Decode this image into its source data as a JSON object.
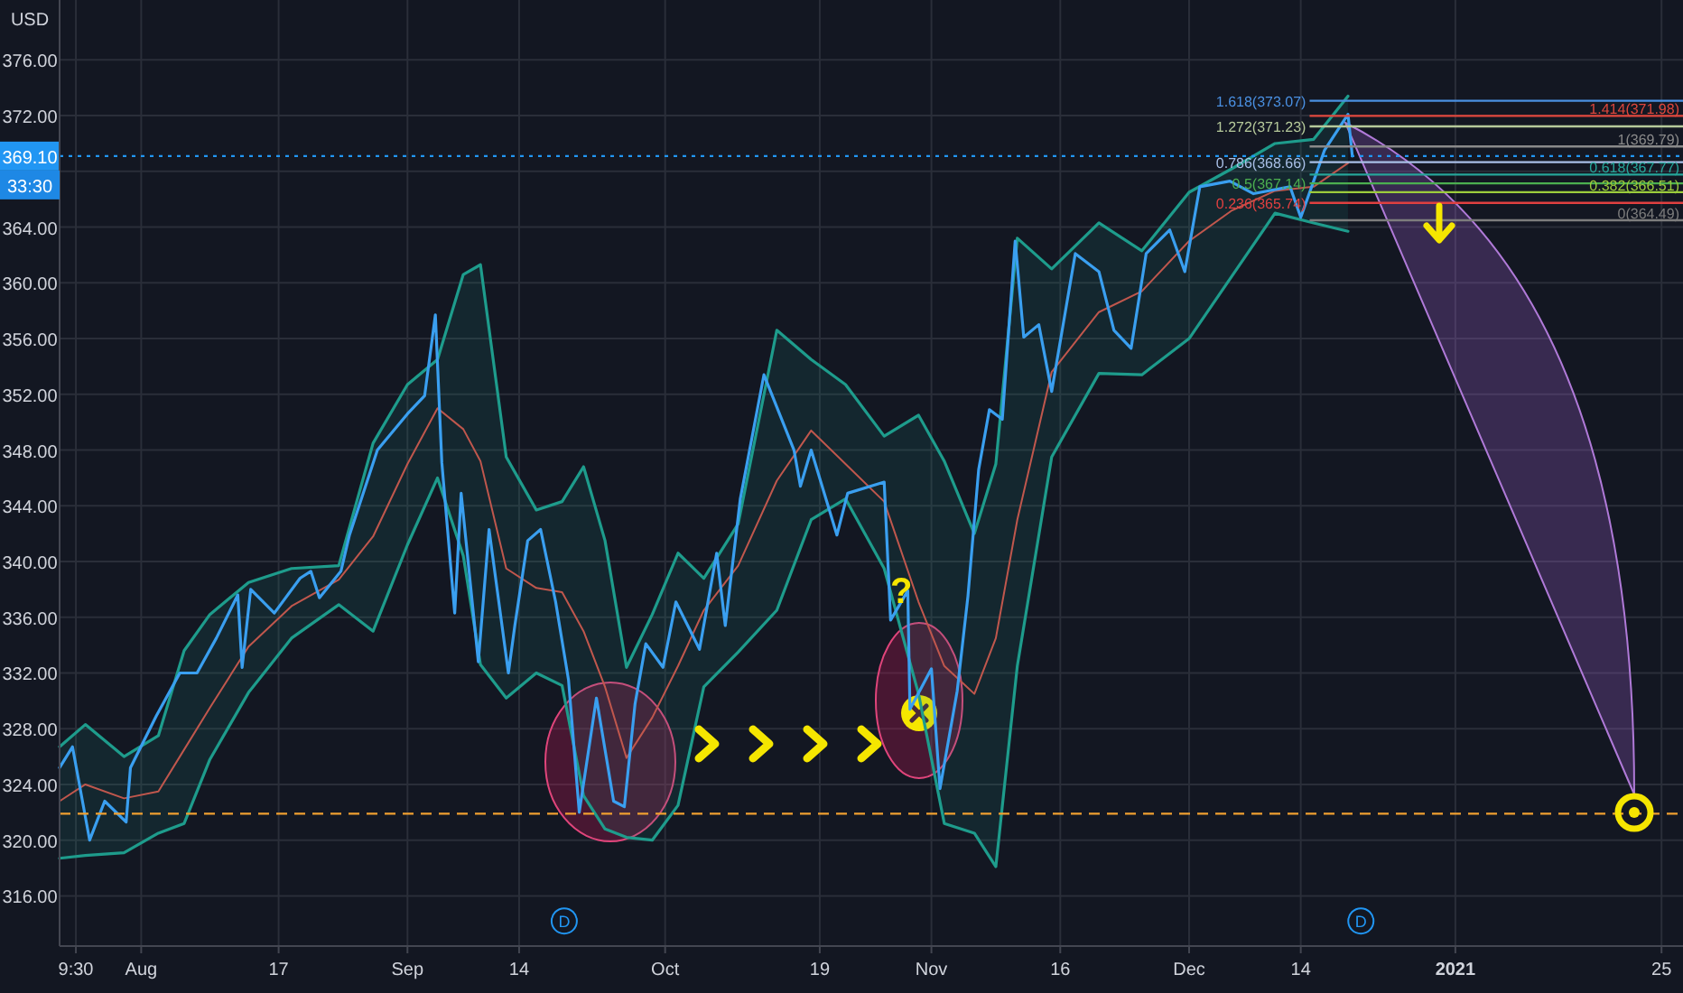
{
  "chart_data": {
    "type": "line",
    "xlim": [
      "2020-07-22T12:00",
      "2021-01-27T12:00"
    ],
    "ylim": [
      312.4,
      380.3
    ],
    "xticks": [
      {
        "value": "2020-07-24T09:30",
        "label": "9:30"
      },
      {
        "value": "2020-08-01",
        "label": "Aug"
      },
      {
        "value": "2020-08-17",
        "label": "17"
      },
      {
        "value": "2020-09-01",
        "label": "Sep"
      },
      {
        "value": "2020-09-14",
        "label": "14"
      },
      {
        "value": "2020-10-01",
        "label": "Oct"
      },
      {
        "value": "2020-10-19",
        "label": "19"
      },
      {
        "value": "2020-11-01",
        "label": "Nov"
      },
      {
        "value": "2020-11-16",
        "label": "16"
      },
      {
        "value": "2020-12-01",
        "label": "Dec"
      },
      {
        "value": "2020-12-14",
        "label": "14"
      },
      {
        "value": "2021-01-01",
        "label": "2021"
      },
      {
        "value": "2021-01-25",
        "label": "25"
      }
    ],
    "yticks": [
      {
        "value": 316,
        "label": "316.00"
      },
      {
        "value": 320,
        "label": "320.00"
      },
      {
        "value": 324,
        "label": "324.00"
      },
      {
        "value": 328,
        "label": "328.00"
      },
      {
        "value": 332,
        "label": "332.00"
      },
      {
        "value": 336,
        "label": "336.00"
      },
      {
        "value": 340,
        "label": "340.00"
      },
      {
        "value": 344,
        "label": "344.00"
      },
      {
        "value": 348,
        "label": "348.00"
      },
      {
        "value": 352,
        "label": "352.00"
      },
      {
        "value": 356,
        "label": "356.00"
      },
      {
        "value": 360,
        "label": "360.00"
      },
      {
        "value": 364,
        "label": "364.00"
      },
      {
        "value": 368,
        "label": null
      },
      {
        "value": 372,
        "label": "372.00"
      },
      {
        "value": 376,
        "label": "376.00"
      }
    ],
    "grid": true,
    "series": [
      {
        "color": "#c0574d",
        "x": [
          "2020-07-22T12:00",
          "2020-07-25T12:00",
          "2020-07-30",
          "2020-08-03",
          "2020-08-06",
          "2020-08-09",
          "2020-08-13T12:00",
          "2020-08-18T12:00",
          "2020-08-24",
          "2020-08-28",
          "2020-09-01",
          "2020-09-04T12:00",
          "2020-09-07T12:00",
          "2020-09-09T12:00",
          "2020-09-12T12:00",
          "2020-09-16",
          "2020-09-19",
          "2020-09-21T12:00",
          "2020-09-24",
          "2020-09-26T12:00",
          "2020-09-29T12:00",
          "2020-10-02T12:00",
          "2020-10-05T12:00",
          "2020-10-09T12:00",
          "2020-10-14",
          "2020-10-18",
          "2020-10-22",
          "2020-10-26T12:00",
          "2020-10-30T12:00",
          "2020-11-02T12:00",
          "2020-11-06",
          "2020-11-08T12:00",
          "2020-11-11",
          "2020-11-15",
          "2020-11-20T12:00",
          "2020-11-25T12:00",
          "2020-12-01",
          "2020-12-06",
          "2020-12-11",
          "2020-12-15T12:00",
          "2020-12-19T12:00"
        ],
        "values": [
          322.8,
          324.0,
          323.0,
          323.5,
          326.5,
          329.5,
          333.9,
          336.8,
          338.7,
          341.8,
          347.0,
          351.0,
          349.5,
          347.2,
          339.5,
          338.1,
          337.8,
          335.0,
          331.0,
          325.9,
          328.8,
          332.5,
          336.5,
          339.7,
          345.8,
          349.4,
          347.0,
          344.3,
          337.1,
          332.5,
          330.5,
          334.5,
          343.0,
          353.6,
          357.9,
          359.4,
          363.0,
          365.2,
          366.6,
          366.9,
          368.6
        ],
        "lower": [
          318.7,
          318.9,
          319.1,
          320.5,
          321.2,
          325.8,
          330.6,
          334.5,
          336.9,
          335.0,
          341.2,
          346.0,
          340.4,
          332.6,
          330.2,
          332.0,
          331.1,
          323.2,
          320.8,
          320.2,
          320.0,
          322.5,
          331.0,
          333.5,
          336.5,
          343.0,
          344.5,
          339.5,
          330.5,
          321.2,
          320.5,
          318.1,
          332.5,
          347.5,
          353.5,
          353.4,
          356.0,
          360.5,
          365.0,
          364.3,
          363.7
        ],
        "upper": [
          326.7,
          328.3,
          326.0,
          327.5,
          333.6,
          336.2,
          338.5,
          339.5,
          339.7,
          348.5,
          352.7,
          354.5,
          360.6,
          361.3,
          347.5,
          343.7,
          344.3,
          346.8,
          341.5,
          332.4,
          336.2,
          340.6,
          338.8,
          342.7,
          356.6,
          354.5,
          352.7,
          349.0,
          350.5,
          347.2,
          342.0,
          347.0,
          363.2,
          361.0,
          364.3,
          362.3,
          366.5,
          368.2,
          370.0,
          370.3,
          373.4
        ]
      },
      {
        "color": "#1e9c8c",
        "x": [
          "2020-07-22T12:00",
          "2020-07-25T12:00",
          "2020-07-30",
          "2020-08-03",
          "2020-08-06",
          "2020-08-09",
          "2020-08-13T12:00",
          "2020-08-18T12:00",
          "2020-08-24",
          "2020-08-28",
          "2020-09-01",
          "2020-09-04T12:00",
          "2020-09-07T12:00",
          "2020-09-09T12:00",
          "2020-09-12T12:00",
          "2020-09-16",
          "2020-09-19",
          "2020-09-21T12:00",
          "2020-09-24",
          "2020-09-26T12:00",
          "2020-09-29T12:00",
          "2020-10-02T12:00",
          "2020-10-05T12:00",
          "2020-10-09T12:00",
          "2020-10-14",
          "2020-10-18",
          "2020-10-22",
          "2020-10-26T12:00",
          "2020-10-30T12:00",
          "2020-11-02T12:00",
          "2020-11-06",
          "2020-11-08T12:00",
          "2020-11-11",
          "2020-11-15",
          "2020-11-20T12:00",
          "2020-11-25T12:00",
          "2020-12-01",
          "2020-12-06",
          "2020-12-11",
          "2020-12-15T12:00",
          "2020-12-19T12:00"
        ],
        "values": [
          326.7,
          328.3,
          326.0,
          327.5,
          333.6,
          336.2,
          338.5,
          339.5,
          339.7,
          348.5,
          352.7,
          354.5,
          360.6,
          361.3,
          347.5,
          343.7,
          344.3,
          346.8,
          341.5,
          332.4,
          336.2,
          340.6,
          338.8,
          342.7,
          356.6,
          354.5,
          352.7,
          349.0,
          350.5,
          347.2,
          342.0,
          347.0,
          363.2,
          361.0,
          364.3,
          362.3,
          366.5,
          368.2,
          370.0,
          370.3,
          373.4
        ]
      },
      {
        "color": "#1e9c8c",
        "x": [
          "2020-07-22T12:00",
          "2020-07-25T12:00",
          "2020-07-30",
          "2020-08-03",
          "2020-08-06",
          "2020-08-09",
          "2020-08-13T12:00",
          "2020-08-18T12:00",
          "2020-08-24",
          "2020-08-28",
          "2020-09-01",
          "2020-09-04T12:00",
          "2020-09-07T12:00",
          "2020-09-09T12:00",
          "2020-09-12T12:00",
          "2020-09-16",
          "2020-09-19",
          "2020-09-21T12:00",
          "2020-09-24",
          "2020-09-26T12:00",
          "2020-09-29T12:00",
          "2020-10-02T12:00",
          "2020-10-05T12:00",
          "2020-10-09T12:00",
          "2020-10-14",
          "2020-10-18",
          "2020-10-22",
          "2020-10-26T12:00",
          "2020-10-30T12:00",
          "2020-11-02T12:00",
          "2020-11-06",
          "2020-11-08T12:00",
          "2020-11-11",
          "2020-11-15",
          "2020-11-20T12:00",
          "2020-11-25T12:00",
          "2020-12-01",
          "2020-12-06",
          "2020-12-11",
          "2020-12-15T12:00",
          "2020-12-19T12:00"
        ],
        "values": [
          318.7,
          318.9,
          319.1,
          320.5,
          321.2,
          325.8,
          330.6,
          334.5,
          336.9,
          335.0,
          341.2,
          346.0,
          340.4,
          332.6,
          330.2,
          332.0,
          331.1,
          323.2,
          320.8,
          320.2,
          320.0,
          322.5,
          331.0,
          333.5,
          336.5,
          343.0,
          344.5,
          339.5,
          330.5,
          321.2,
          320.5,
          318.1,
          332.5,
          347.5,
          353.5,
          353.4,
          356.0,
          360.5,
          365.0,
          364.3,
          363.7
        ]
      },
      {
        "color": "#3a9ff0",
        "x": [
          "2020-07-22T12:00",
          "2020-07-24",
          "2020-07-26",
          "2020-07-27T18:00",
          "2020-07-30T06:00",
          "2020-07-30T18:00",
          "2020-08-02T18:00",
          "2020-08-05T12:00",
          "2020-08-07T12:00",
          "2020-08-09T18:00",
          "2020-08-12T06:00",
          "2020-08-12T18:00",
          "2020-08-13T18:00",
          "2020-08-16T12:00",
          "2020-08-19T12:00",
          "2020-08-20T18:00",
          "2020-08-21T18:00",
          "2020-08-24T06:00",
          "2020-08-25T06:00",
          "2020-08-28T12:00",
          "2020-09-01",
          "2020-09-03",
          "2020-09-04T06:00",
          "2020-09-05",
          "2020-09-06T12:00",
          "2020-09-07T06:00",
          "2020-09-09T06:00",
          "2020-09-10T12:00",
          "2020-09-12T18:00",
          "2020-09-13T12:00",
          "2020-09-15",
          "2020-09-16T12:00",
          "2020-09-18T06:00",
          "2020-09-19T18:00",
          "2020-09-21",
          "2020-09-23",
          "2020-09-25",
          "2020-09-26T06:00",
          "2020-09-27T12:00",
          "2020-09-28T18:00",
          "2020-09-30T18:00",
          "2020-10-02T06:00",
          "2020-10-05",
          "2020-10-07",
          "2020-10-08",
          "2020-10-09T18:00",
          "2020-10-12T12:00",
          "2020-10-16",
          "2020-10-16T18:00",
          "2020-10-18",
          "2020-10-21",
          "2020-10-22T06:00",
          "2020-10-26T12:00",
          "2020-10-27T06:00",
          "2020-10-29T06:00",
          "2020-10-29T12:00",
          "2020-11-01",
          "2020-11-02",
          "2020-11-04",
          "2020-11-05T06:00",
          "2020-11-06T12:00",
          "2020-11-07T18:00",
          "2020-11-09T06:00",
          "2020-11-10T18:00",
          "2020-11-11T18:00",
          "2020-11-13T12:00",
          "2020-11-15",
          "2020-11-17T18:00",
          "2020-11-20T12:00",
          "2020-11-22T06:00",
          "2020-11-24T06:00",
          "2020-11-26",
          "2020-11-28T18:00",
          "2020-11-30T12:00",
          "2020-12-02T06:00",
          "2020-12-05T18:00",
          "2020-12-08T12:00",
          "2020-12-12T18:00",
          "2020-12-14",
          "2020-12-15T12:00",
          "2020-12-16T18:00",
          "2020-12-19T12:00",
          "2020-12-20"
        ],
        "values": [
          325.2,
          326.7,
          320.0,
          322.8,
          321.3,
          325.2,
          328.9,
          332.0,
          332.0,
          334.5,
          337.6,
          332.4,
          338.0,
          336.3,
          338.8,
          339.3,
          337.4,
          339.3,
          341.9,
          348.0,
          350.6,
          351.9,
          357.7,
          347.1,
          336.3,
          344.9,
          332.8,
          342.3,
          332.0,
          335.4,
          341.5,
          342.3,
          337.1,
          331.5,
          322.0,
          330.2,
          322.8,
          322.4,
          329.8,
          334.1,
          332.4,
          337.1,
          333.7,
          340.6,
          335.4,
          344.5,
          353.4,
          348.0,
          345.4,
          348.0,
          341.9,
          344.9,
          345.7,
          335.8,
          337.9,
          329.4,
          332.3,
          323.7,
          330.7,
          337.5,
          346.6,
          350.9,
          350.2,
          363.0,
          356.1,
          357.0,
          352.2,
          362.1,
          360.8,
          356.6,
          355.3,
          362.1,
          363.8,
          360.8,
          366.9,
          367.3,
          366.4,
          366.9,
          364.7,
          367.3,
          369.5,
          372.1,
          369.1
        ]
      }
    ],
    "ref_lines": [
      {
        "axis": "y",
        "value": 373.07,
        "label": "1.618(373.07)",
        "color": "#4a90e2",
        "line_style": "solid"
      },
      {
        "axis": "y",
        "value": 371.98,
        "label": "1.414(371.98)",
        "color": "#e0473c",
        "line_style": "solid"
      },
      {
        "axis": "y",
        "value": 371.23,
        "label": "1.272(371.23)",
        "color": "#b5c99a",
        "line_style": "solid"
      },
      {
        "axis": "y",
        "value": 369.79,
        "label": "1(369.79)",
        "color": "#8a8a8a",
        "line_style": "solid"
      },
      {
        "axis": "y",
        "value": 368.66,
        "label": "0.786(368.66)",
        "color": "#a8bfe6",
        "line_style": "solid"
      },
      {
        "axis": "y",
        "value": 367.77,
        "label": "0.618(367.77)",
        "color": "#26a69a",
        "line_style": "solid"
      },
      {
        "axis": "y",
        "value": 367.14,
        "label": "0.5(367.14)",
        "color": "#4caf50",
        "line_style": "solid"
      },
      {
        "axis": "y",
        "value": 366.51,
        "label": "0.382(366.51)",
        "color": "#9ccc3c",
        "line_style": "solid"
      },
      {
        "axis": "y",
        "value": 365.74,
        "label": "0.236(365.74)",
        "color": "#e04040",
        "line_style": "solid"
      },
      {
        "axis": "y",
        "value": 364.49,
        "label": "0(364.49)",
        "color": "#7d7d7d",
        "line_style": "solid"
      },
      {
        "axis": "y",
        "value": 369.1,
        "label": "369.10",
        "color": "#2196f3",
        "line_style": "dotted"
      },
      {
        "axis": "y",
        "value": 321.9,
        "color": "#f0a030",
        "line_style": "dashed"
      }
    ],
    "annotations": [
      "USD",
      "33:30",
      {
        "text": "?",
        "x": "2020-10-28T12:00",
        "y": 337.9
      },
      {
        "text": "D",
        "x": "2020-09-19T06:00",
        "y": 314.2
      },
      {
        "text": "D",
        "x": "2020-12-21",
        "y": 314.2
      }
    ]
  }
}
